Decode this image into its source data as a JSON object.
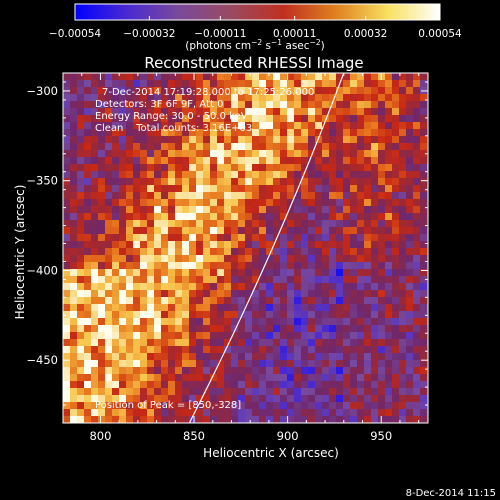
{
  "colorbar": {
    "ticks": [
      "−0.00054",
      "−0.00032",
      "−0.00011",
      "0.00011",
      "0.00032",
      "0.00054"
    ],
    "tick_values": [
      -0.00054,
      -0.00032,
      -0.00011,
      0.00011,
      0.00032,
      0.00054
    ],
    "units_prefix": "(photons cm",
    "units_sup1": "−2",
    "units_mid": " s",
    "units_sup2": "−1",
    "units_mid2": " asec",
    "units_sup3": "−2",
    "units_suffix": ")",
    "range": [
      -0.00054,
      0.00054
    ],
    "colors": [
      "#0000ff",
      "#4a2ad0",
      "#7a4a9a",
      "#9a4a60",
      "#c03020",
      "#e08020",
      "#f8e060",
      "#ffffff"
    ]
  },
  "title": "Reconstructed RHESSI Image",
  "info": {
    "time": "7-Dec-2014 17:19:28.000 to 17:25:26.000",
    "detectors": "Detectors: 3F 6F 9F, Att 0",
    "energy": "Energy Range: 30.0 - 50.0 keV",
    "clean": "Clean    Total counts: 3.16E+03"
  },
  "peak": "Position of Peak = [850,-328]",
  "footer": "8-Dec-2014 11:15",
  "chart_data": {
    "type": "heatmap",
    "title": "Reconstructed RHESSI Image",
    "xlabel": "Heliocentric X (arcsec)",
    "ylabel": "Heliocentric Y (arcsec)",
    "xlim": [
      780,
      975
    ],
    "ylim": [
      -485,
      -290
    ],
    "xticks": [
      800,
      850,
      900,
      950
    ],
    "yticks": [
      -300,
      -350,
      -400,
      -450
    ],
    "xtick_labels": [
      "800",
      "850",
      "900",
      "950"
    ],
    "ytick_labels": [
      "−300",
      "−350",
      "−400",
      "−450"
    ],
    "limb_x_at_ylim": [
      842,
      933
    ],
    "peak_position": [
      850,
      -328
    ],
    "colorbar_range": [
      -0.00054,
      0.00054
    ],
    "grid": false
  }
}
